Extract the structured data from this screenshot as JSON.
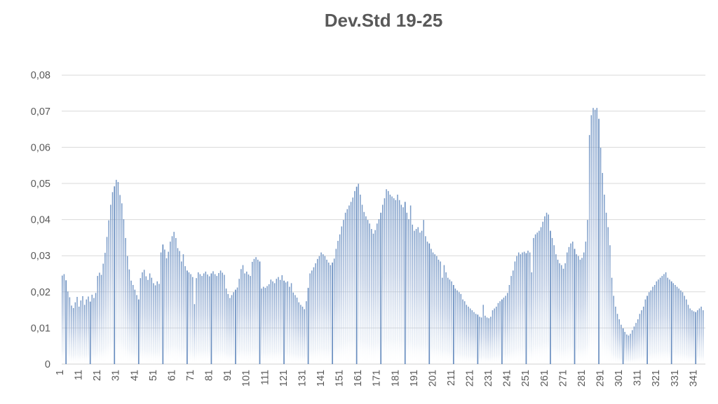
{
  "chart_data": {
    "type": "bar",
    "title": "Dev.Std 19-25",
    "xlabel": "",
    "ylabel": "",
    "x_start": 1,
    "x_tick_interval": 10,
    "x_tick_labels": [
      "1",
      "11",
      "21",
      "31",
      "41",
      "51",
      "61",
      "71",
      "81",
      "91",
      "101",
      "111",
      "121",
      "131",
      "141",
      "151",
      "161",
      "171",
      "181",
      "191",
      "201",
      "211",
      "221",
      "231",
      "241",
      "251",
      "261",
      "271",
      "281",
      "291",
      "301",
      "311",
      "321",
      "331",
      "341"
    ],
    "y_tick_labels": [
      "0",
      "0,01",
      "0,02",
      "0,03",
      "0,04",
      "0,05",
      "0,06",
      "0,07",
      "0,08"
    ],
    "ylim": [
      0,
      0.08
    ],
    "decimal_separator": ",",
    "grid": "horizontal",
    "legend_position": "none",
    "colors": {
      "bar_top": "#6f93c3",
      "bar_mid": "#9db3d6",
      "bar_fade": "#ccd9ea",
      "bar_dark": "#5b83ba",
      "gridline": "#d9d9d9",
      "baseline": "#d0d0d0",
      "axis_label": "#595959",
      "title": "#595959"
    },
    "n_points": 345,
    "values": [
      0.0245,
      0.0249,
      0.0232,
      0.0201,
      0.0185,
      0.0162,
      0.0155,
      0.0171,
      0.0186,
      0.0159,
      0.0176,
      0.0188,
      0.0164,
      0.0179,
      0.0187,
      0.0173,
      0.0192,
      0.0183,
      0.0197,
      0.0244,
      0.0253,
      0.0247,
      0.0278,
      0.0308,
      0.0352,
      0.0398,
      0.0441,
      0.0476,
      0.0492,
      0.051,
      0.0504,
      0.0468,
      0.0445,
      0.0401,
      0.0349,
      0.0299,
      0.0262,
      0.0231,
      0.0219,
      0.0206,
      0.0191,
      0.0179,
      0.0238,
      0.0254,
      0.0261,
      0.0243,
      0.0233,
      0.0251,
      0.0239,
      0.0224,
      0.0218,
      0.0229,
      0.0222,
      0.0309,
      0.0331,
      0.0317,
      0.0293,
      0.0311,
      0.0339,
      0.0354,
      0.0366,
      0.0349,
      0.0321,
      0.0313,
      0.0284,
      0.0304,
      0.0271,
      0.0259,
      0.0254,
      0.0249,
      0.0241,
      0.0166,
      0.0238,
      0.0254,
      0.0249,
      0.0244,
      0.0251,
      0.0256,
      0.0248,
      0.0243,
      0.0251,
      0.0257,
      0.0249,
      0.0244,
      0.0252,
      0.0259,
      0.0253,
      0.0247,
      0.0209,
      0.0194,
      0.0183,
      0.0191,
      0.0199,
      0.0206,
      0.0212,
      0.0236,
      0.0263,
      0.0274,
      0.0251,
      0.0256,
      0.0248,
      0.0244,
      0.0283,
      0.0291,
      0.0296,
      0.0289,
      0.0284,
      0.0209,
      0.0214,
      0.0211,
      0.0216,
      0.0221,
      0.0234,
      0.0229,
      0.0224,
      0.0236,
      0.0241,
      0.0233,
      0.0246,
      0.0231,
      0.0226,
      0.0229,
      0.0214,
      0.0224,
      0.0198,
      0.0191,
      0.0184,
      0.0171,
      0.0164,
      0.0159,
      0.0152,
      0.0174,
      0.0211,
      0.0251,
      0.0259,
      0.0268,
      0.0279,
      0.0291,
      0.0299,
      0.0309,
      0.0304,
      0.0299,
      0.0289,
      0.0281,
      0.0274,
      0.0281,
      0.0292,
      0.0319,
      0.0341,
      0.0359,
      0.0381,
      0.0399,
      0.0419,
      0.0429,
      0.0439,
      0.0449,
      0.0461,
      0.0479,
      0.0491,
      0.0499,
      0.0469,
      0.0441,
      0.0421,
      0.0409,
      0.0399,
      0.0389,
      0.0374,
      0.0361,
      0.0371,
      0.0389,
      0.0401,
      0.0419,
      0.0441,
      0.0459,
      0.0484,
      0.0479,
      0.0469,
      0.0464,
      0.0459,
      0.0454,
      0.0469,
      0.0454,
      0.0441,
      0.0434,
      0.0449,
      0.0419,
      0.0401,
      0.0439,
      0.0386,
      0.0369,
      0.0374,
      0.0379,
      0.0364,
      0.0369,
      0.0399,
      0.0354,
      0.0339,
      0.0334,
      0.0319,
      0.0309,
      0.0304,
      0.0299,
      0.0289,
      0.0284,
      0.0239,
      0.0274,
      0.0254,
      0.0239,
      0.0234,
      0.0229,
      0.0219,
      0.0209,
      0.0204,
      0.0199,
      0.0194,
      0.0179,
      0.0174,
      0.0164,
      0.0159,
      0.0154,
      0.0149,
      0.0144,
      0.0139,
      0.0137,
      0.0131,
      0.0129,
      0.0164,
      0.0134,
      0.0129,
      0.0127,
      0.0131,
      0.0149,
      0.0154,
      0.0159,
      0.0169,
      0.0174,
      0.0179,
      0.0184,
      0.0189,
      0.0197,
      0.0219,
      0.0244,
      0.0259,
      0.0284,
      0.0299,
      0.0309,
      0.0304,
      0.0309,
      0.0311,
      0.0307,
      0.0314,
      0.0309,
      0.0254,
      0.0349,
      0.0359,
      0.0364,
      0.0369,
      0.0379,
      0.0394,
      0.0409,
      0.0419,
      0.0414,
      0.0369,
      0.0349,
      0.0329,
      0.0304,
      0.0289,
      0.0279,
      0.0274,
      0.0264,
      0.0279,
      0.0309,
      0.0324,
      0.0334,
      0.0339,
      0.0319,
      0.0304,
      0.0299,
      0.0289,
      0.0294,
      0.0309,
      0.0339,
      0.0399,
      0.0634,
      0.0689,
      0.0709,
      0.0704,
      0.0709,
      0.0679,
      0.0599,
      0.0529,
      0.0469,
      0.0419,
      0.0379,
      0.0329,
      0.0239,
      0.0189,
      0.0159,
      0.0139,
      0.0124,
      0.0109,
      0.0099,
      0.0089,
      0.0082,
      0.0079,
      0.0084,
      0.0094,
      0.0104,
      0.0114,
      0.0124,
      0.0139,
      0.0149,
      0.0159,
      0.0179,
      0.0189,
      0.0199,
      0.0204,
      0.0214,
      0.0219,
      0.0229,
      0.0234,
      0.0239,
      0.0244,
      0.0249,
      0.0254,
      0.0239,
      0.0234,
      0.0229,
      0.0224,
      0.0219,
      0.0214,
      0.0209,
      0.0204,
      0.0199,
      0.0189,
      0.0179,
      0.0164,
      0.0154,
      0.0149,
      0.0146,
      0.0144,
      0.0149,
      0.0154,
      0.0159,
      0.0149
    ]
  }
}
